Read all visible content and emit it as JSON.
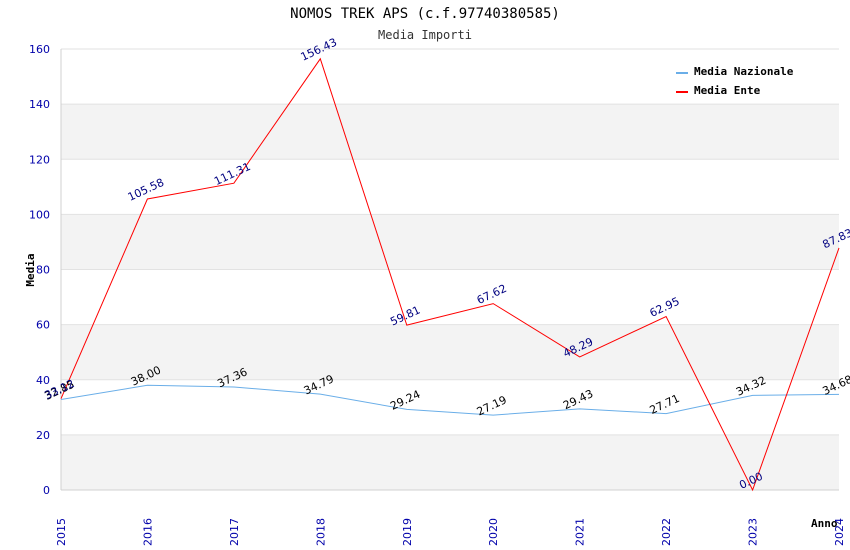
{
  "chart_data": {
    "type": "line",
    "title": "NOMOS TREK APS (c.f.97740380585)",
    "subtitle": "Media Importi",
    "xlabel": "Anno",
    "ylabel": "Media",
    "ylim": [
      0,
      160
    ],
    "yticks": [
      "0",
      "20",
      "40",
      "60",
      "80",
      "100",
      "120",
      "140",
      "160"
    ],
    "categories": [
      "2015",
      "2016",
      "2017",
      "2018",
      "2019",
      "2020",
      "2021",
      "2022",
      "2023",
      "2024"
    ],
    "grid": true,
    "legend_position": "top-right",
    "series": [
      {
        "name": "Media Nazionale",
        "color": "#6aaee8",
        "values": [
          32.85,
          38.0,
          37.36,
          34.79,
          29.24,
          27.19,
          29.43,
          27.71,
          34.32,
          34.68
        ],
        "labels": [
          "32.85",
          "38.00",
          "37.36",
          "34.79",
          "29.24",
          "27.19",
          "29.43",
          "27.71",
          "34.32",
          "34.68"
        ]
      },
      {
        "name": "Media Ente",
        "color": "#ff0000",
        "values": [
          33.12,
          105.58,
          111.31,
          156.43,
          59.81,
          67.62,
          48.29,
          62.95,
          0.0,
          87.83
        ],
        "labels": [
          "33.12",
          "105.58",
          "111.31",
          "156.43",
          "59.81",
          "67.62",
          "48.29",
          "62.95",
          "0.00",
          "87.83"
        ]
      }
    ]
  }
}
